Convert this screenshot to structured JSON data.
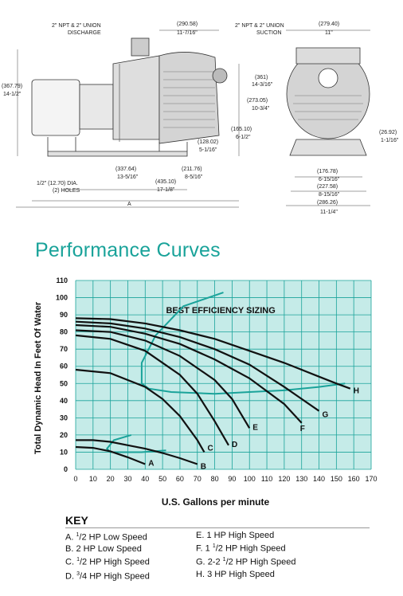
{
  "drawing": {
    "labels": {
      "discharge": [
        "2\" NPT & 2\" UNION",
        "DISCHARGE"
      ],
      "suction": [
        "2\" NPT & 2\" UNION",
        "SUCTION"
      ],
      "top_width": [
        "(290.58)",
        "11-7/16\""
      ],
      "end_width": [
        "(279.40)",
        "11\""
      ],
      "overall_height": [
        "(367.79)",
        "14-1/2\""
      ],
      "suction_height": [
        "(361)",
        "14-3/16\""
      ],
      "center_height": [
        "(273.05)",
        "10-3/4\""
      ],
      "shaft_height": [
        "(165.10)",
        "6-1/2\""
      ],
      "base_offset": [
        "(128.02)",
        "5-1/16\""
      ],
      "side_offset": [
        "(26.92)",
        "1-1/16\""
      ],
      "len_a": [
        "(337.64)",
        "13-5/16\""
      ],
      "len_b": [
        "(211.76)",
        "8-5/16\""
      ],
      "len_c": [
        "(435.10)",
        "17-1/8\""
      ],
      "holes": [
        "1/2\" (12.70) DIA.",
        "(2) HOLES"
      ],
      "overall_length": "A",
      "foot_w1": [
        "(176.78)",
        "6-15/16\""
      ],
      "foot_w2": [
        "(227.58)",
        "8-15/16\""
      ],
      "foot_w3": [
        "(286.26)",
        "11-1/4\""
      ]
    }
  },
  "title": "Performance Curves",
  "chart_data": {
    "type": "line",
    "title": "BEST EFFICIENCY SIZING",
    "xlabel": "U.S. Gallons per minute",
    "ylabel": "Total Dynamic Head In Feet Of Water",
    "xlim": [
      0,
      170
    ],
    "ylim": [
      0,
      110
    ],
    "xticks": [
      "0",
      "10",
      "20",
      "30",
      "40",
      "50",
      "60",
      "70",
      "80",
      "90",
      "100",
      "110",
      "120",
      "130",
      "140",
      "150",
      "160",
      "170"
    ],
    "yticks": [
      "0",
      "10",
      "20",
      "30",
      "40",
      "50",
      "60",
      "70",
      "80",
      "90",
      "100",
      "110"
    ],
    "grid": true,
    "series": [
      {
        "name": "A",
        "x": [
          0,
          10,
          20,
          30,
          40
        ],
        "y": [
          13,
          12.5,
          10.5,
          7,
          3
        ]
      },
      {
        "name": "B",
        "x": [
          0,
          10,
          20,
          30,
          40,
          50,
          60,
          70
        ],
        "y": [
          17,
          17,
          16,
          14,
          12,
          9.5,
          6.5,
          3
        ]
      },
      {
        "name": "C",
        "x": [
          0,
          20,
          40,
          50,
          60,
          70,
          74
        ],
        "y": [
          58,
          56,
          48,
          41,
          31,
          17,
          10
        ]
      },
      {
        "name": "D",
        "x": [
          0,
          20,
          40,
          60,
          70,
          80,
          88
        ],
        "y": [
          78,
          76,
          69,
          55,
          44,
          28,
          14
        ]
      },
      {
        "name": "E",
        "x": [
          0,
          20,
          40,
          60,
          80,
          90,
          100
        ],
        "y": [
          81,
          80,
          75,
          66,
          52,
          41,
          24
        ]
      },
      {
        "name": "F",
        "x": [
          0,
          20,
          40,
          60,
          80,
          100,
          120,
          130
        ],
        "y": [
          84,
          83,
          79,
          73,
          64,
          53,
          38,
          27
        ]
      },
      {
        "name": "G",
        "x": [
          0,
          20,
          40,
          60,
          80,
          100,
          120,
          140
        ],
        "y": [
          86,
          85,
          82,
          77,
          70,
          61,
          48,
          34
        ]
      },
      {
        "name": "H",
        "x": [
          0,
          20,
          40,
          60,
          80,
          100,
          120,
          140,
          150,
          158
        ],
        "y": [
          88,
          87.5,
          85,
          81,
          76,
          69,
          62,
          54,
          50,
          47
        ]
      }
    ],
    "efficiency_bands": [
      {
        "x": [
          85,
          62,
          46,
          38,
          38,
          42,
          55,
          80,
          100,
          120,
          140,
          155
        ],
        "y": [
          103,
          95,
          78,
          62,
          50,
          47,
          45,
          44,
          45,
          46,
          48,
          50
        ]
      },
      {
        "x": [
          32,
          22,
          18,
          20,
          28,
          38,
          52
        ],
        "y": [
          20,
          17,
          12,
          10,
          10,
          10,
          11
        ]
      }
    ],
    "colors": {
      "grid": "#1aa39a",
      "plot_bg": "#c5ebe8",
      "curves": "#111111",
      "bands": "#1aa39a"
    }
  },
  "key": {
    "title": "KEY",
    "left": [
      {
        "letter": "A.",
        "num": "1",
        "den": "2",
        "text": "HP Low Speed"
      },
      {
        "letter": "B.",
        "text": "2 HP Low Speed"
      },
      {
        "letter": "C.",
        "num": "1",
        "den": "2",
        "text": "HP High Speed"
      },
      {
        "letter": "D.",
        "num": "3",
        "den": "4",
        "text": "HP High Speed"
      }
    ],
    "right": [
      {
        "letter": "E.",
        "text": "1 HP High Speed"
      },
      {
        "letter": "F.",
        "pre": "1",
        "num": "1",
        "den": "2",
        "text": "HP High Speed"
      },
      {
        "letter": "G.",
        "pre": "2-2",
        "num": "1",
        "den": "2",
        "text": "HP High Speed"
      },
      {
        "letter": "H.",
        "text": "3 HP High Speed"
      }
    ]
  }
}
